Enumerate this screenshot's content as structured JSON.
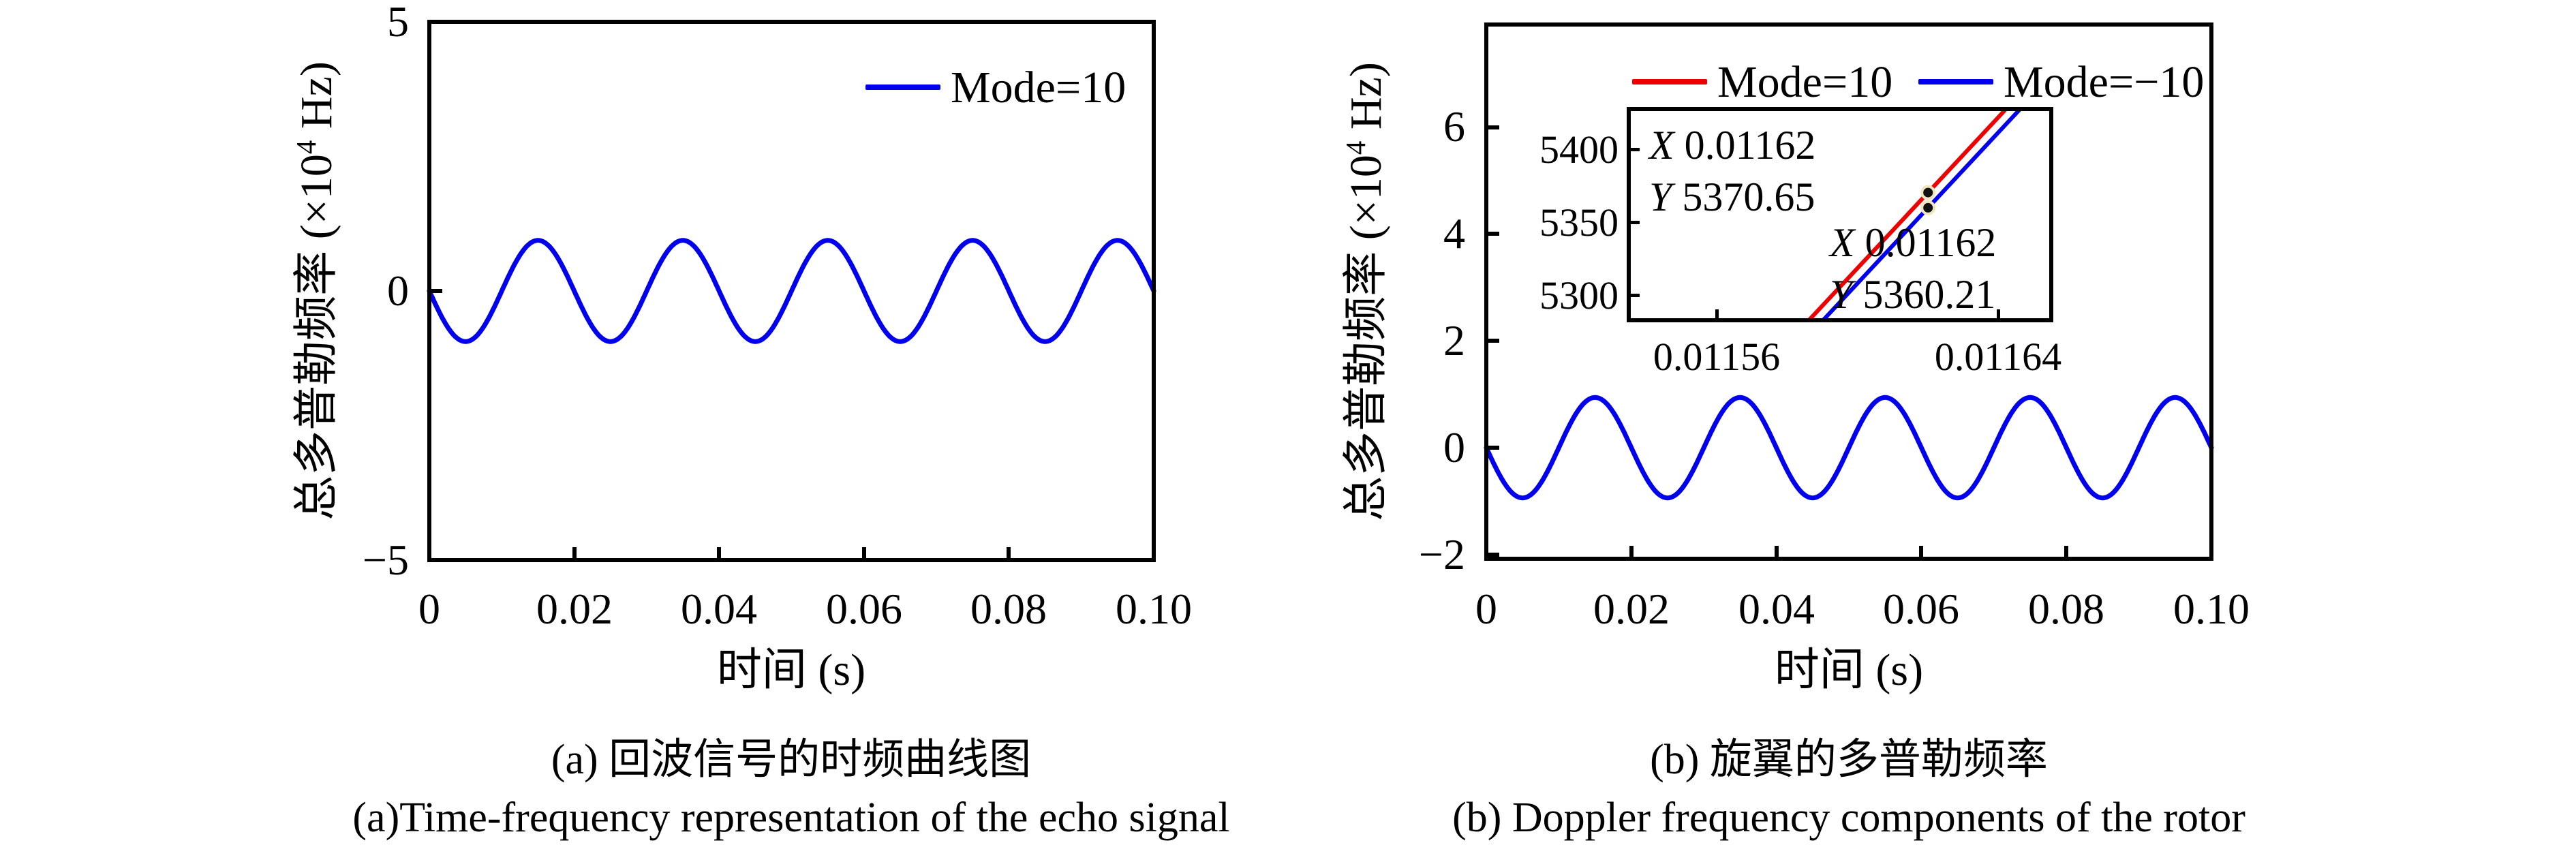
{
  "figure": {
    "background": "#ffffff",
    "text_color": "#000000"
  },
  "panel_a": {
    "legend": [
      {
        "label": "Mode=10",
        "color": "#0000ee"
      }
    ],
    "ylabel_prefix": "总多普勒频率 (×10",
    "ylabel_sup": "4",
    "ylabel_suffix": " Hz)",
    "xlabel": "时间 (s)",
    "ytick_labels": [
      "5",
      "0",
      "−5"
    ],
    "xtick_labels": [
      "0",
      "0.02",
      "0.04",
      "0.06",
      "0.08",
      "0.10"
    ],
    "caption_line1": "(a) 回波信号的时频曲线图",
    "caption_line2": "(a)Time-frequency representation of the echo signal"
  },
  "panel_b": {
    "legend": [
      {
        "label": "Mode=10",
        "color": "#ee0000"
      },
      {
        "label": "Mode=−10",
        "color": "#0000ee"
      }
    ],
    "ylabel_prefix": "总多普勒频率 (×10",
    "ylabel_sup": "4",
    "ylabel_suffix": " Hz)",
    "xlabel": "时间 (s)",
    "ytick_labels": [
      "6",
      "4",
      "2",
      "0",
      "−2"
    ],
    "xtick_labels": [
      "0",
      "0.02",
      "0.04",
      "0.06",
      "0.08",
      "0.10"
    ],
    "inset": {
      "ytick_labels": [
        "5400",
        "5350",
        "5300"
      ],
      "xtick_labels": [
        "0.01156",
        "0.01164"
      ],
      "annotation_1": {
        "line1": "X 0.01162",
        "line2": "Y 5370.65"
      },
      "annotation_2": {
        "line1": "X 0.01162",
        "line2": "Y 5360.21"
      }
    },
    "caption_line1": "(b) 旋翼的多普勒频率",
    "caption_line2": "(b) Doppler frequency components of the rotor"
  },
  "chart_data": [
    {
      "type": "line",
      "panel": "a",
      "title": "(a) 回波信号的时频曲线图 / (a)Time-frequency representation of the echo signal",
      "xlabel": "时间 (s)",
      "ylabel": "总多普勒频率 (×10^4 Hz)",
      "xlim": [
        0,
        0.1
      ],
      "ylim": [
        -5,
        5
      ],
      "xticks": [
        0,
        0.02,
        0.04,
        0.06,
        0.08,
        0.1
      ],
      "yticks": [
        5,
        0,
        -5
      ],
      "grid": false,
      "legend_position": "top-right",
      "series": [
        {
          "name": "Mode=10",
          "color": "#0000ee",
          "model": "y(t) = -A*sin(2*pi*f*t)",
          "amplitude_e4Hz": 0.94,
          "frequency_hz": 50,
          "period_s": 0.02,
          "peaks_t": [
            0.015,
            0.035,
            0.055,
            0.075,
            0.095
          ],
          "troughs_t": [
            0.005,
            0.025,
            0.045,
            0.065,
            0.085
          ]
        }
      ]
    },
    {
      "type": "line",
      "panel": "b",
      "title": "(b) 旋翼的多普勒频率 / (b) Doppler frequency components of the rotor",
      "xlabel": "时间 (s)",
      "ylabel": "总多普勒频率 (×10^4 Hz)",
      "xlim": [
        0,
        0.1
      ],
      "ylim": [
        -2.1,
        7.9
      ],
      "xticks": [
        0,
        0.02,
        0.04,
        0.06,
        0.08,
        0.1
      ],
      "yticks": [
        6,
        4,
        2,
        0,
        -2
      ],
      "grid": false,
      "legend_position": "top-center-inside",
      "series": [
        {
          "name": "Mode=10",
          "color": "#ee0000",
          "model": "y(t) = -A*sin(2*pi*f*t)",
          "amplitude_e4Hz": 0.94,
          "frequency_hz": 50,
          "period_s": 0.02,
          "note": "visually overlapped by Mode=−10 at main-axes scale"
        },
        {
          "name": "Mode=−10",
          "color": "#0000ee",
          "model": "y(t) = -A*sin(2*pi*f*t)",
          "amplitude_e4Hz": 0.94,
          "frequency_hz": 50,
          "period_s": 0.02
        }
      ],
      "inset": {
        "xlim": [
          0.011535,
          0.011655
        ],
        "ylim": [
          5283,
          5428
        ],
        "xticks": [
          0.01156,
          0.01164
        ],
        "yticks": [
          5400,
          5350,
          5300
        ],
        "units": "Hz",
        "line_slope_hz_per_s": 2590000,
        "datatips": [
          {
            "series": "Mode=10",
            "color": "#ee0000",
            "x": 0.01162,
            "y": 5370.65,
            "label_x": "X 0.01162",
            "label_y": "Y 5370.65"
          },
          {
            "series": "Mode=−10",
            "color": "#0000ee",
            "x": 0.01162,
            "y": 5360.21,
            "label_x": "X 0.01162",
            "label_y": "Y 5360.21"
          }
        ]
      }
    }
  ]
}
